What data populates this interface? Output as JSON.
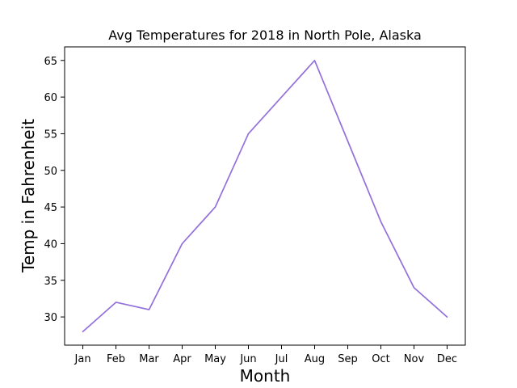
{
  "chart_data": {
    "type": "line",
    "title": "Avg Temperatures for 2018 in North Pole, Alaska",
    "xlabel": "Month",
    "ylabel": "Temp in Fahrenheit",
    "categories": [
      "Jan",
      "Feb",
      "Mar",
      "Apr",
      "May",
      "Jun",
      "Jul",
      "Aug",
      "Sep",
      "Oct",
      "Nov",
      "Dec"
    ],
    "series": [
      {
        "values": [
          28,
          32,
          31,
          40,
          45,
          55,
          60,
          65,
          54,
          43,
          34,
          30
        ],
        "color": "#9370DB"
      }
    ],
    "yticks": [
      30,
      35,
      40,
      45,
      50,
      55,
      60,
      65
    ],
    "ylim": [
      26.15,
      66.85
    ],
    "grid": false,
    "legend": "none"
  }
}
